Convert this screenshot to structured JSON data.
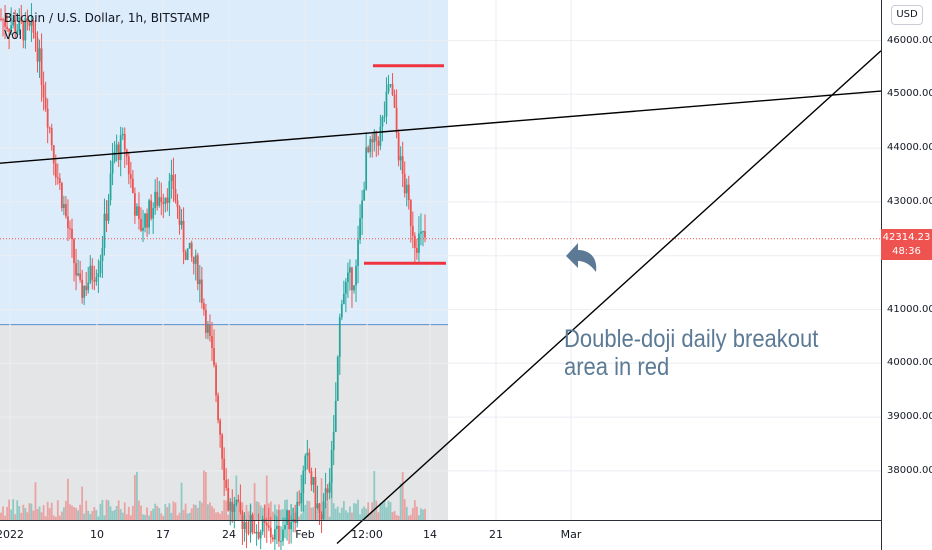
{
  "legend": {
    "symbol_line": "Bitcoin / U.S. Dollar, 1h, BITSTAMP",
    "volume_line": "Vol"
  },
  "currency_button": "USD",
  "price_tag": {
    "price": "42314.23",
    "countdown": "48:36"
  },
  "annotation": {
    "line1": "Double-doji daily breakout",
    "line2": "area in red"
  },
  "colors": {
    "up": "#26a69a",
    "down": "#ef5350",
    "highlight_upper": "#dcecfb",
    "highlight_lower": "#e4e5e7",
    "annotation": "#5c7a95",
    "breakout_lines": "#ef3340",
    "trendlines": "#000000"
  },
  "chart_data": {
    "type": "candlestick",
    "title": "Bitcoin / U.S. Dollar, 1h, BITSTAMP",
    "y_axis": {
      "ticks": [
        "46000.00",
        "45000.00",
        "44000.00",
        "43000.00",
        "42000.00",
        "41000.00",
        "40000.00",
        "39000.00",
        "38000.00"
      ],
      "tick_values": [
        46000,
        45000,
        44000,
        43000,
        42000,
        41000,
        40000,
        39000,
        38000
      ],
      "range": [
        37000,
        46700
      ]
    },
    "x_axis": {
      "ticks": [
        "2022",
        "10",
        "17",
        "24",
        "Feb",
        "12:00",
        "14",
        "21",
        "Mar"
      ]
    },
    "last_price": 42314.23,
    "price_path": [
      [
        0,
        46400
      ],
      [
        0.035,
        46100
      ],
      [
        0.055,
        43700
      ],
      [
        0.065,
        42800
      ],
      [
        0.08,
        41300
      ],
      [
        0.1,
        41900
      ],
      [
        0.115,
        43900
      ],
      [
        0.125,
        44100
      ],
      [
        0.14,
        42500
      ],
      [
        0.16,
        43100
      ],
      [
        0.175,
        43300
      ],
      [
        0.185,
        42200
      ],
      [
        0.2,
        41700
      ],
      [
        0.215,
        40000
      ],
      [
        0.23,
        37400
      ],
      [
        0.25,
        37000
      ],
      [
        0.28,
        36800
      ],
      [
        0.3,
        37300
      ],
      [
        0.31,
        38200
      ],
      [
        0.325,
        37000
      ],
      [
        0.337,
        38400
      ],
      [
        0.345,
        41300
      ],
      [
        0.36,
        41700
      ],
      [
        0.37,
        43800
      ],
      [
        0.385,
        44300
      ],
      [
        0.395,
        45200
      ],
      [
        0.405,
        43700
      ],
      [
        0.42,
        42300
      ],
      [
        0.43,
        42314
      ]
    ],
    "volume": {
      "label": "Vol"
    },
    "drawings": {
      "trendline_upper": {
        "from_value": 43720,
        "to_value": 45060,
        "label": ""
      },
      "trendline_rising": {
        "from_value": 36650,
        "to_value": 45810,
        "label": ""
      },
      "breakout_high": 45530,
      "breakout_low": 41860,
      "highlight_split_value": 40720
    }
  }
}
